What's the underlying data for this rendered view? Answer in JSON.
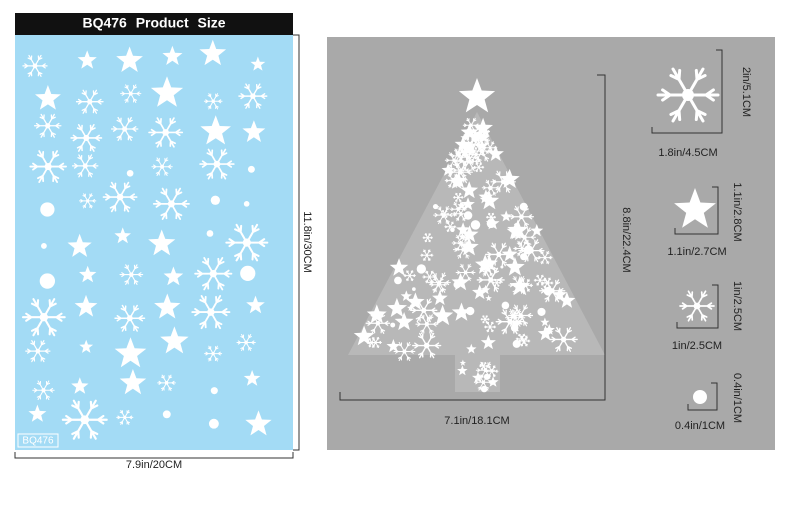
{
  "header": {
    "title": "BQ476 Product Size"
  },
  "sheet": {
    "label": "BQ476",
    "width": "7.9in/20CM",
    "height": "11.8in/30CM"
  },
  "tree": {
    "width": "7.1in/18.1CM",
    "height": "8.8in/22.4CM"
  },
  "pieces": [
    {
      "height": "2in/5.1CM",
      "width": "1.8in/4.5CM"
    },
    {
      "height": "1.1in/2.8CM",
      "width": "1.1in/2.7CM"
    },
    {
      "height": "1in/2.5CM",
      "width": "1in/2.5CM"
    },
    {
      "height": "0.4in/1CM",
      "width": "0.4in/1CM"
    }
  ]
}
